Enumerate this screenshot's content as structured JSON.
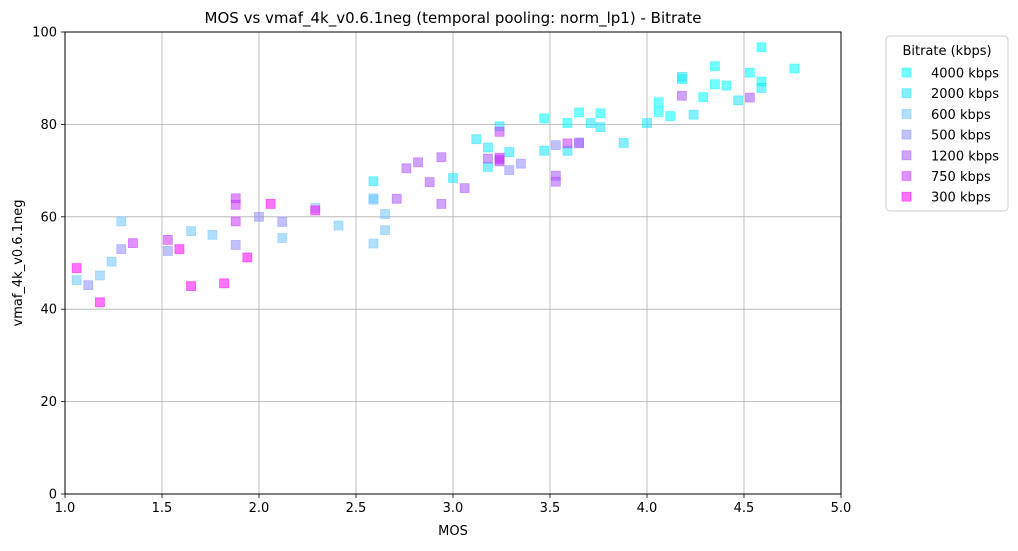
{
  "chart_data": {
    "type": "scatter",
    "title": "MOS vs vmaf_4k_v0.6.1neg (temporal pooling: norm_lp1) - Bitrate",
    "xlabel": "MOS",
    "ylabel": "vmaf_4k_v0.6.1neg",
    "xlim": [
      1.0,
      5.0
    ],
    "ylim": [
      0,
      100
    ],
    "xticks": [
      1.0,
      1.5,
      2.0,
      2.5,
      3.0,
      3.5,
      4.0,
      4.5,
      5.0
    ],
    "xtick_labels": [
      "1.0",
      "1.5",
      "2.0",
      "2.5",
      "3.0",
      "3.5",
      "4.0",
      "4.5",
      "5.0"
    ],
    "yticks": [
      0,
      20,
      40,
      60,
      80,
      100
    ],
    "ytick_labels": [
      "0",
      "20",
      "40",
      "60",
      "80",
      "100"
    ],
    "grid": true,
    "marker": "square",
    "legend": {
      "title": "Bitrate (kbps)",
      "placement": "outside-right-top"
    },
    "series": [
      {
        "name": "4000 kbps",
        "color": "#00ffff",
        "x": [
          3.47,
          3.59,
          3.65,
          3.76,
          4.18,
          4.35,
          4.41,
          4.53,
          4.59,
          4.59,
          4.76,
          4.35,
          4.29,
          4.12,
          4.06,
          4.06
        ],
        "y": [
          81.3,
          80.3,
          82.6,
          82.4,
          89.8,
          92.6,
          88.4,
          91.2,
          89.3,
          96.7,
          92.1,
          88.7,
          85.9,
          81.8,
          82.7,
          84.8
        ]
      },
      {
        "name": "2000 kbps",
        "color": "#1ce3ff",
        "x": [
          2.59,
          3.0,
          3.12,
          3.18,
          3.29,
          3.24,
          3.47,
          3.59,
          3.71,
          3.76,
          3.88,
          4.0,
          4.18,
          4.24,
          4.47,
          4.59,
          3.18
        ],
        "y": [
          67.7,
          68.4,
          76.8,
          70.8,
          74.0,
          79.6,
          74.3,
          74.3,
          80.3,
          79.4,
          76.0,
          80.3,
          90.3,
          82.1,
          85.2,
          87.9,
          75.0
        ]
      },
      {
        "name": "600 kbps",
        "color": "#71c6ff",
        "x": [
          1.06,
          1.18,
          1.24,
          1.29,
          1.65,
          1.76,
          2.12,
          2.29,
          2.41,
          2.59,
          2.59,
          2.65,
          2.65,
          2.59
        ],
        "y": [
          46.3,
          47.3,
          50.3,
          59.0,
          56.9,
          56.1,
          55.4,
          61.9,
          58.1,
          63.7,
          54.2,
          57.1,
          60.6,
          64.0
        ]
      },
      {
        "name": "500 kbps",
        "color": "#8e8eff",
        "x": [
          1.12,
          1.29,
          1.53,
          1.88,
          2.0,
          2.12,
          3.29,
          3.35,
          3.53,
          3.65
        ],
        "y": [
          45.2,
          53.0,
          52.6,
          53.9,
          60.0,
          58.9,
          70.1,
          71.5,
          75.5,
          76.1
        ]
      },
      {
        "name": "1200 kbps",
        "color": "#aa55ff",
        "x": [
          2.71,
          2.76,
          2.82,
          2.88,
          2.94,
          2.94,
          3.06,
          3.18,
          3.24,
          3.53,
          3.53,
          3.65,
          4.18,
          4.53
        ],
        "y": [
          63.9,
          70.5,
          71.8,
          67.5,
          62.8,
          72.9,
          66.2,
          72.6,
          72.0,
          68.9,
          67.6,
          75.9,
          86.2,
          85.8
        ]
      },
      {
        "name": "750 kbps",
        "color": "#c637ff",
        "x": [
          1.35,
          1.53,
          1.88,
          1.88,
          1.88,
          3.24,
          3.24,
          3.24,
          3.59
        ],
        "y": [
          54.3,
          55.0,
          59.0,
          64.0,
          62.6,
          72.4,
          78.4,
          72.8,
          75.9
        ]
      },
      {
        "name": "300 kbps",
        "color": "#ff00ff",
        "x": [
          1.06,
          1.18,
          1.59,
          1.65,
          1.82,
          1.94,
          2.06,
          2.29
        ],
        "y": [
          48.9,
          41.5,
          53.0,
          45.0,
          45.6,
          51.2,
          62.8,
          61.4
        ]
      }
    ]
  }
}
